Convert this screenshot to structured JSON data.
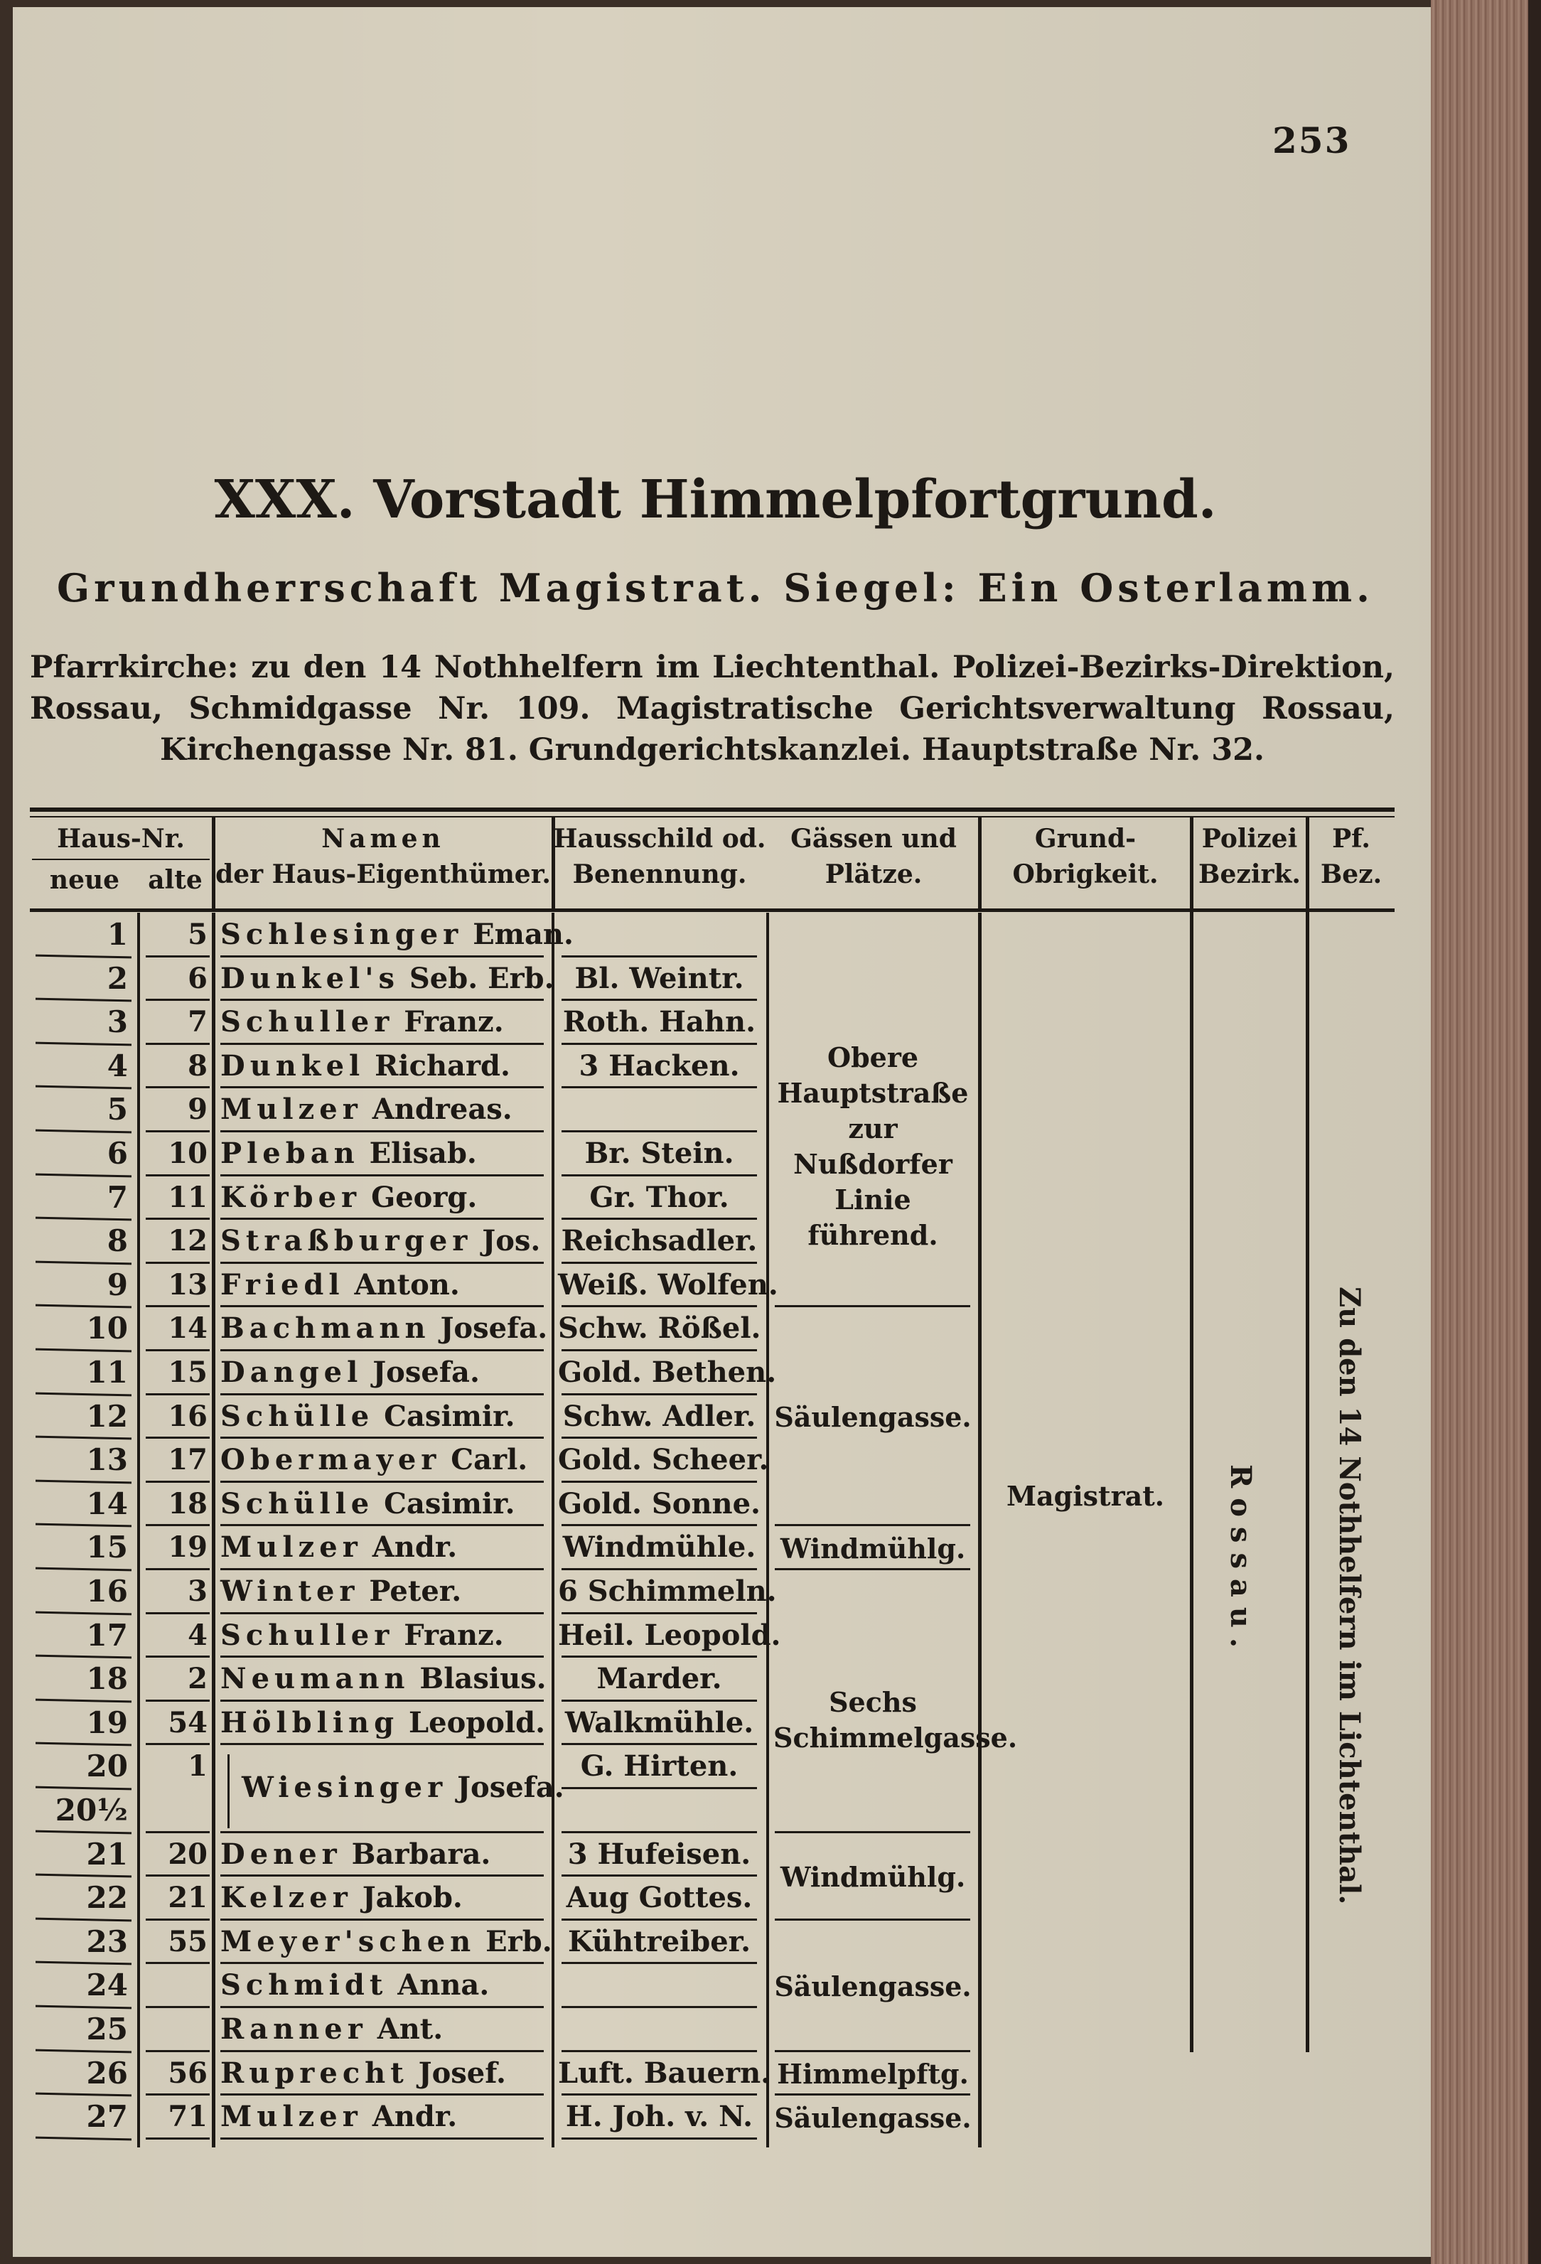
{
  "page_number": "253",
  "title": "XXX. Vorstadt Himmelpfortgrund.",
  "subtitle": "Grundherrschaft Magistrat. Siegel: Ein Osterlamm.",
  "intro": "Pfarrkirche: zu den 14 Nothhelfern im Liechtenthal. Polizei-Bezirks-Direktion, Rossau, Schmidgasse Nr. 109. Magistratische Gerichtsverwaltung Rossau, Kirchengasse Nr. 81. Grundgerichtskanzlei. Hauptstraße Nr. 32.",
  "table": {
    "headers": {
      "haus_nr": "Haus-Nr.",
      "neue": "neue",
      "alte": "alte",
      "namen_1": "Namen",
      "namen_2": "der Haus-Eigenthümer.",
      "hausschild_1": "Hausschild od.",
      "hausschild_2": "Benennung.",
      "gassen_1": "Gässen und",
      "gassen_2": "Plätze.",
      "grund_1": "Grund-",
      "grund_2": "Obrigkeit.",
      "polizei_1": "Polizei",
      "polizei_2": "Bezirk.",
      "pf_1": "Pf.",
      "pf_2": "Bez."
    },
    "rows": [
      {
        "neue": "1",
        "alte": "5",
        "surname": "Schlesinger",
        "given": "Eman.",
        "schild": ""
      },
      {
        "neue": "2",
        "alte": "6",
        "surname": "Dunkel's",
        "given": "Seb. Erb.",
        "schild": "Bl. Weintr."
      },
      {
        "neue": "3",
        "alte": "7",
        "surname": "Schuller",
        "given": "Franz.",
        "schild": "Roth. Hahn."
      },
      {
        "neue": "4",
        "alte": "8",
        "surname": "Dunkel",
        "given": "Richard.",
        "schild": "3 Hacken."
      },
      {
        "neue": "5",
        "alte": "9",
        "surname": "Mulzer",
        "given": "Andreas.",
        "schild": ""
      },
      {
        "neue": "6",
        "alte": "10",
        "surname": "Pleban",
        "given": "Elisab.",
        "schild": "Br. Stein."
      },
      {
        "neue": "7",
        "alte": "11",
        "surname": "Körber",
        "given": "Georg.",
        "schild": "Gr. Thor."
      },
      {
        "neue": "8",
        "alte": "12",
        "surname": "Straßburger",
        "given": "Jos.",
        "schild": "Reichsadler."
      },
      {
        "neue": "9",
        "alte": "13",
        "surname": "Friedl",
        "given": "Anton.",
        "schild": "Weiß. Wolfen."
      },
      {
        "neue": "10",
        "alte": "14",
        "surname": "Bachmann",
        "given": "Josefa.",
        "schild": "Schw. Rößel."
      },
      {
        "neue": "11",
        "alte": "15",
        "surname": "Dangel",
        "given": "Josefa.",
        "schild": "Gold. Bethen."
      },
      {
        "neue": "12",
        "alte": "16",
        "surname": "Schülle",
        "given": "Casimir.",
        "schild": "Schw. Adler."
      },
      {
        "neue": "13",
        "alte": "17",
        "surname": "Obermayer",
        "given": "Carl.",
        "schild": "Gold. Scheer."
      },
      {
        "neue": "14",
        "alte": "18",
        "surname": "Schülle",
        "given": "Casimir.",
        "schild": "Gold. Sonne."
      },
      {
        "neue": "15",
        "alte": "19",
        "surname": "Mulzer",
        "given": "Andr.",
        "schild": "Windmühle."
      },
      {
        "neue": "16",
        "alte": "3",
        "surname": "Winter",
        "given": "Peter.",
        "schild": "6 Schimmeln."
      },
      {
        "neue": "17",
        "alte": "4",
        "surname": "Schuller",
        "given": "Franz.",
        "schild": "Heil. Leopold."
      },
      {
        "neue": "18",
        "alte": "2",
        "surname": "Neumann",
        "given": "Blasius.",
        "schild": "Marder."
      },
      {
        "neue": "19",
        "alte": "54",
        "surname": "Hölbling",
        "given": "Leopold.",
        "schild": "Walkmühle."
      },
      {
        "neue": "20",
        "alte": "1",
        "surname": "Wiesinger",
        "given": "Josefa.",
        "schild": "G. Hirten."
      },
      {
        "neue": "20½",
        "alte": "",
        "surname": "",
        "given": "",
        "schild": ""
      },
      {
        "neue": "21",
        "alte": "20",
        "surname": "Dener",
        "given": "Barbara.",
        "schild": "3 Hufeisen."
      },
      {
        "neue": "22",
        "alte": "21",
        "surname": "Kelzer",
        "given": "Jakob.",
        "schild": "Aug Gottes."
      },
      {
        "neue": "23",
        "alte": "55",
        "surname": "Meyer'schen",
        "given": "Erb.",
        "schild": "Kühtreiber."
      },
      {
        "neue": "24",
        "alte": "",
        "surname": "Schmidt",
        "given": "Anna.",
        "schild": ""
      },
      {
        "neue": "25",
        "alte": "",
        "surname": "Ranner",
        "given": "Ant.",
        "schild": ""
      },
      {
        "neue": "26",
        "alte": "56",
        "surname": "Ruprecht",
        "given": "Josef.",
        "schild": "Luft. Bauern."
      },
      {
        "neue": "27",
        "alte": "71",
        "surname": "Mulzer",
        "given": "Andr.",
        "schild": "H. Joh. v. N."
      }
    ],
    "gassen_groups": [
      {
        "from": 0,
        "to": 8,
        "label": "Obere Hauptstraße zur Nußdorfer Linie führend."
      },
      {
        "from": 9,
        "to": 13,
        "label": "Säulengasse."
      },
      {
        "from": 14,
        "to": 14,
        "label": "Windmühlg."
      },
      {
        "from": 15,
        "to": 20,
        "label": "Sechs Schimmelgasse."
      },
      {
        "from": 21,
        "to": 22,
        "label": "Windmühlg."
      },
      {
        "from": 23,
        "to": 25,
        "label": "Säulengasse."
      },
      {
        "from": 26,
        "to": 26,
        "label": "Himmelpftg."
      },
      {
        "from": 27,
        "to": 27,
        "label": "Säulengasse."
      }
    ],
    "grund_obrigkeit": "Magistrat.",
    "polizei_bezirk": "Rossau.",
    "pfarr_bezirk": "Zu den 14 Nothhelfern im Lichtenthal."
  }
}
